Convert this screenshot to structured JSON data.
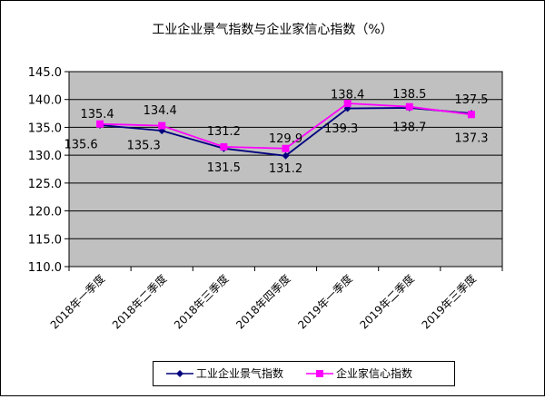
{
  "chart_data": {
    "type": "line",
    "title": "工业企业景气指数与企业家信心指数（%）",
    "categories": [
      "2018年一季度",
      "2018年二季度",
      "2018年三季度",
      "2018年四季度",
      "2019年一季度",
      "2019年二季度",
      "2019年三季度"
    ],
    "series": [
      {
        "name": "工业企业景气指数",
        "values": [
          135.4,
          134.4,
          131.2,
          129.9,
          138.4,
          138.5,
          137.5
        ],
        "labels": [
          "135.4",
          "134.4",
          "131.2",
          "129.9",
          "138.4",
          "138.5",
          "137.5"
        ],
        "color": "#00007f",
        "marker": "diamond"
      },
      {
        "name": "企业家信心指数",
        "values": [
          135.6,
          135.3,
          131.5,
          131.2,
          139.3,
          138.7,
          137.3
        ],
        "labels": [
          "135.6",
          "135.3",
          "131.5",
          "131.2",
          "139.3",
          "138.7",
          "137.3"
        ],
        "color": "#ff00ff",
        "marker": "square"
      }
    ],
    "ylim": [
      110,
      145
    ],
    "yticks": [
      "110.0",
      "115.0",
      "120.0",
      "125.0",
      "130.0",
      "135.0",
      "140.0",
      "145.0"
    ],
    "plot_background": "#c0c0c0",
    "grid": true,
    "legend_position": "bottom"
  }
}
